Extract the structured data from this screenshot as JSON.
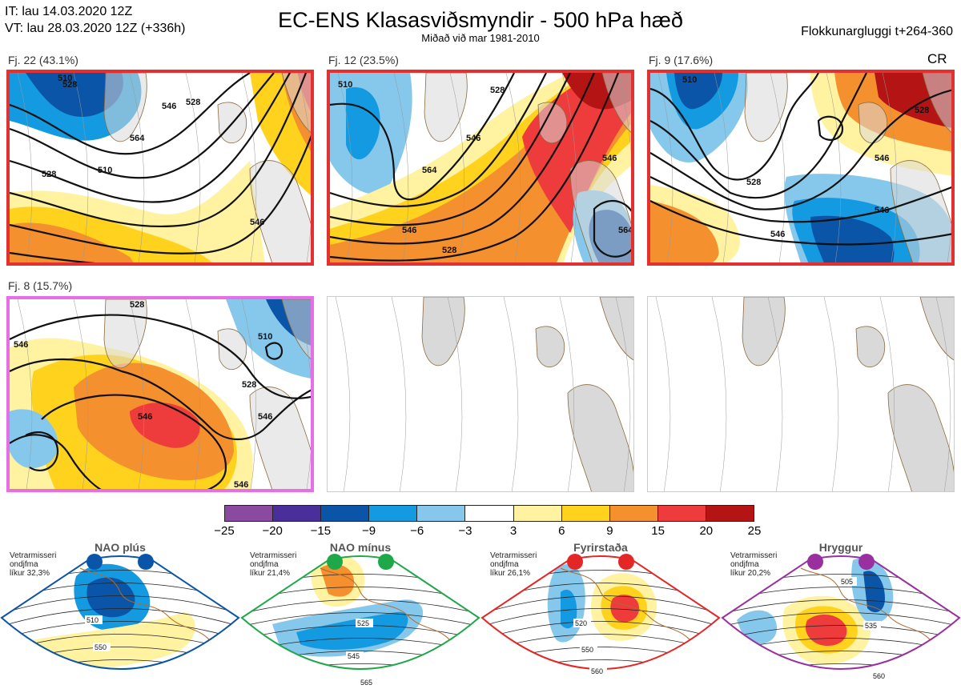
{
  "header": {
    "line1": "IT: lau 14.03.2020 12Z",
    "line2": "VT: lau 28.03.2020 12Z  (+336h)",
    "title": "EC-ENS Klasasviðsmyndir - 500 hPa hæð",
    "subtitle": "Miðað við mar 1981-2010",
    "window": "Flokkunargluggi t+264-360",
    "cr": "CR"
  },
  "panels": [
    {
      "label": "Fj. 22 (43.1%)",
      "border": "#e53030",
      "contours": [
        "510",
        "528",
        "546",
        "564",
        "528",
        "510",
        "528",
        "546"
      ]
    },
    {
      "label": "Fj. 12 (23.5%)",
      "border": "#e53030",
      "contours": [
        "510",
        "528",
        "546",
        "564",
        "546",
        "528",
        "546",
        "564"
      ]
    },
    {
      "label": "Fj. 9 (17.6%)",
      "border": "#e53030",
      "contours": [
        "510",
        "528",
        "546",
        "528",
        "546",
        "546"
      ]
    },
    {
      "label": "Fj. 8 (15.7%)",
      "border": "#e86ee8",
      "contours": [
        "528",
        "546",
        "510",
        "528",
        "546",
        "546",
        "546"
      ]
    },
    {
      "label": "",
      "border": "#cccccc",
      "contours": []
    },
    {
      "label": "",
      "border": "#cccccc",
      "contours": []
    }
  ],
  "colorbar": {
    "colors": [
      "#8a4aa0",
      "#4a2f9a",
      "#0a55a8",
      "#149ae0",
      "#86c8ec",
      "#ffffff",
      "#fff2a0",
      "#ffd21e",
      "#f5902e",
      "#ee3b3b",
      "#b41414"
    ],
    "ticks": [
      "−25",
      "−20",
      "−15",
      "−9",
      "−6",
      "−3",
      "3",
      "6",
      "9",
      "15",
      "20",
      "25"
    ]
  },
  "regimes": [
    {
      "title": "NAO plús",
      "info": [
        "Vetrarmisseri",
        "ondjfma",
        "líkur 32,3%"
      ],
      "color": "#0a55a8",
      "contours": [
        "510",
        "550"
      ]
    },
    {
      "title": "NAO mínus",
      "info": [
        "Vetrarmisseri",
        "ondjfma",
        "líkur 21,4%"
      ],
      "color": "#1fa84a",
      "contours": [
        "525",
        "545",
        "565"
      ]
    },
    {
      "title": "Fyrirstaða",
      "info": [
        "Vetrarmisseri",
        "ondjfma",
        "líkur 26,1%"
      ],
      "color": "#e52626",
      "contours": [
        "520",
        "550",
        "560"
      ]
    },
    {
      "title": "Hryggur",
      "info": [
        "Vetrarmisseri",
        "ondjfma",
        "líkur 20,2%"
      ],
      "color": "#9a2fa0",
      "contours": [
        "505",
        "535",
        "560"
      ]
    }
  ]
}
